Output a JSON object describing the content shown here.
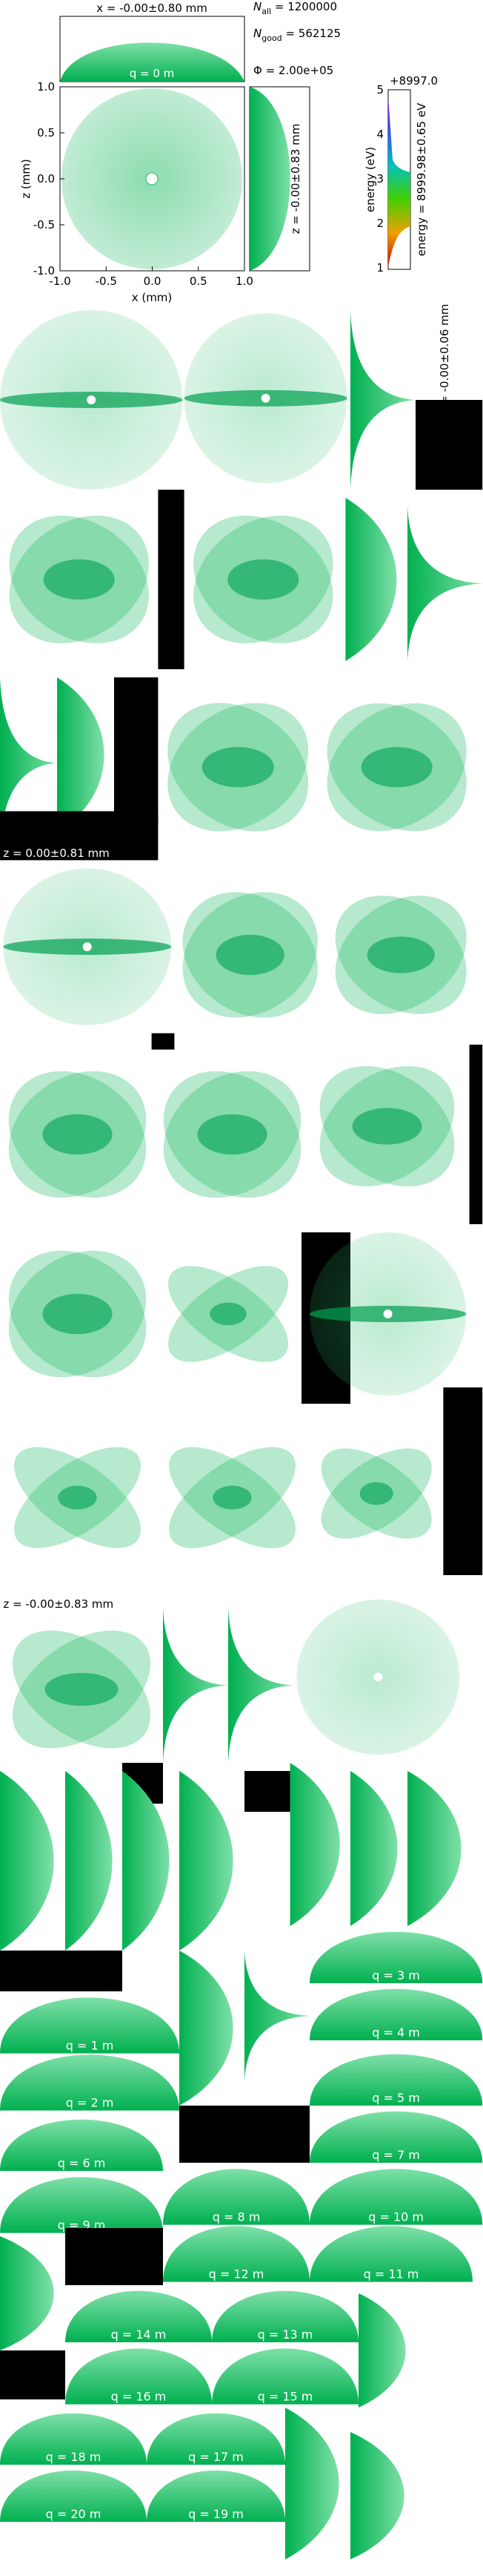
{
  "top": {
    "x_stat": "x = -0.00±0.80 mm",
    "n_all": {
      "symbol": "N",
      "sub": "all",
      "text": " = 1200000"
    },
    "n_good": {
      "symbol": "N",
      "sub": "good",
      "text": " = 562125"
    },
    "flux": "Φ = 2.00e+05",
    "q_label": "q = 0 m",
    "z_ticks": [
      "1.0",
      "0.5",
      "0.0",
      "-0.5",
      "-1.0"
    ],
    "x_ticks": [
      "-1.0",
      "-0.5",
      "0.0",
      "0.5",
      "1.0"
    ],
    "x_label": "x (mm)",
    "z_label": "z (mm)",
    "z_stat": "z = -0.00±0.83 mm",
    "energy_offset": "+8997.0",
    "energy_ticks": [
      "5",
      "4",
      "3",
      "2",
      "1"
    ],
    "energy_label": "energy (eV)",
    "energy_stat": "energy = 8999.98±0.65 eV"
  },
  "panels": {
    "z_stat_a": "z = -0.00±0.06 mm",
    "z_stat_c": "z = 0.00±0.81 mm",
    "z_stat_h": "z = -0.00±0.83 mm",
    "q_labels": [
      "q = 1 m",
      "q = 2 m",
      "q = 3 m",
      "q = 4 m",
      "q = 5 m",
      "q = 6 m",
      "q = 7 m",
      "q = 8 m",
      "q = 9 m",
      "q = 10 m",
      "q = 11 m",
      "q = 12 m",
      "q = 13 m",
      "q = 14 m",
      "q = 15 m",
      "q = 16 m",
      "q = 17 m",
      "q = 18 m",
      "q = 19 m",
      "q = 20 m"
    ]
  }
}
